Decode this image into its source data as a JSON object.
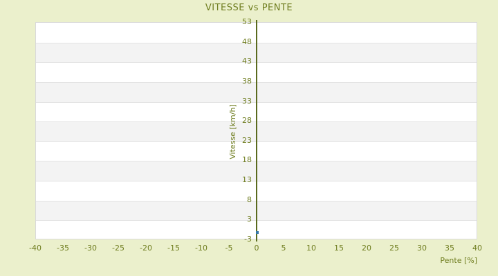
{
  "title": "VITESSE vs PENTE",
  "chart_data": {
    "type": "scatter",
    "title": "VITESSE vs PENTE",
    "xlabel": "Pente [%]",
    "ylabel": "Vitesse [km/h]",
    "xlim": [
      -40,
      40
    ],
    "ylim": [
      -3,
      53
    ],
    "x_ticks": [
      -40,
      -35,
      -30,
      -25,
      -20,
      -15,
      -10,
      -5,
      0,
      5,
      10,
      15,
      20,
      25,
      30,
      35,
      40
    ],
    "y_ticks": [
      53,
      48,
      43,
      38,
      33,
      28,
      23,
      18,
      13,
      8,
      3,
      -3
    ],
    "grid": "horizontal-bands-alternating",
    "legend": "none",
    "series": [
      {
        "name": "vitesse-vs-pente",
        "points": [
          {
            "x": 0,
            "y": 0
          }
        ]
      }
    ]
  },
  "colors": {
    "background": "#ebf0cc",
    "text": "#6f7d1f",
    "axis_line": "#5a6a1e",
    "band_white": "#ffffff",
    "band_gray": "#f3f3f3",
    "grid_line": "#e3e3e3",
    "plot_border": "#d9d9d9",
    "point": "#3878a8"
  }
}
